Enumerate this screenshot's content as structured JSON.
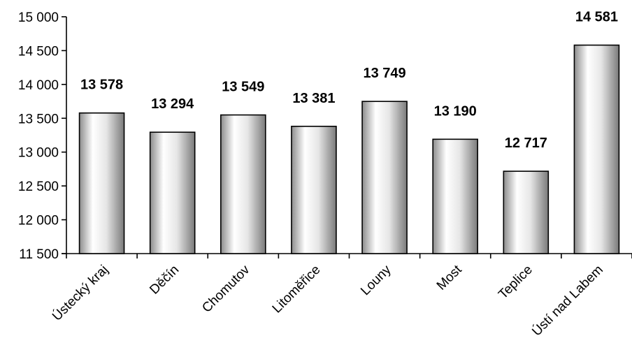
{
  "chart_data": {
    "type": "bar",
    "categories": [
      "Ústecký kraj",
      "Děčín",
      "Chomutov",
      "Litoměřice",
      "Louny",
      "Most",
      "Teplice",
      "Ústí nad Labem"
    ],
    "values": [
      13578,
      13294,
      13549,
      13381,
      13749,
      13190,
      12717,
      14581
    ],
    "data_labels": [
      "13 578",
      "13 294",
      "13 549",
      "13 381",
      "13 749",
      "13 190",
      "12 717",
      "14 581"
    ],
    "ylim": [
      11500,
      15000
    ],
    "yticks": [
      11500,
      12000,
      12500,
      13000,
      13500,
      14000,
      14500,
      15000
    ],
    "ytick_labels": [
      "11 500",
      "12 000",
      "12 500",
      "13 000",
      "13 500",
      "14 000",
      "14 500",
      "15 000"
    ],
    "title": "",
    "xlabel": "",
    "ylabel": "",
    "grid": false,
    "bar_fill": [
      "#8c8c8c",
      "#ffffff",
      "#e6e6e6",
      "#7a7a7a"
    ]
  }
}
